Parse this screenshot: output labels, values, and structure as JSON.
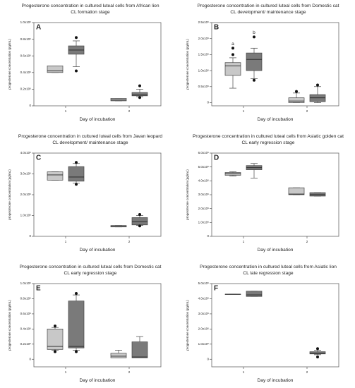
{
  "chart_data": [
    {
      "type": "box",
      "panel": "A",
      "title": "Progesterone concentration in cultured luteal cells from African lion",
      "subtitle": "CL formation stage",
      "xlabel": "Day of incubation",
      "ylabel": "progesterone concentration (pg/mL)",
      "categories": [
        "1",
        "2"
      ],
      "ylim": [
        0,
        1.0
      ],
      "yticks": [
        0,
        {
          "value": 0.2,
          "label": "0.2x10⁶"
        },
        {
          "value": 0.4,
          "label": "0.4x10⁶"
        },
        {
          "value": 0.6,
          "label": "0.6x10⁶"
        },
        {
          "value": 0.8,
          "label": "0.8x10⁶"
        },
        {
          "value": 1.0,
          "label": "1.0x10⁶"
        }
      ],
      "series": [
        {
          "color": "#c8c8c8",
          "boxes": [
            {
              "min": 0.4,
              "q1": 0.4,
              "median": 0.42,
              "q3": 0.48,
              "max": 0.48,
              "outliers": []
            },
            {
              "min": 0.06,
              "q1": 0.06,
              "median": 0.07,
              "q3": 0.09,
              "max": 0.09,
              "outliers": []
            }
          ]
        },
        {
          "color": "#7a7a7a",
          "boxes": [
            {
              "min": 0.47,
              "q1": 0.62,
              "median": 0.67,
              "q3": 0.72,
              "max": 0.78,
              "outliers": [
                0.42,
                0.82
              ]
            },
            {
              "min": 0.11,
              "q1": 0.12,
              "median": 0.13,
              "q3": 0.16,
              "max": 0.2,
              "outliers": [
                0.1,
                0.24
              ]
            }
          ]
        }
      ]
    },
    {
      "type": "box",
      "panel": "B",
      "title": "Progesterone concentration in cultured luteal cells from Domestic cat",
      "subtitle": "CL development/ maintenance stage",
      "xlabel": "Day of incubation",
      "ylabel": "progesterone concentration (pg/mL)",
      "categories": [
        "1",
        "2"
      ],
      "ylim": [
        -0.1,
        2.5
      ],
      "yticks": [
        0,
        {
          "value": 0.5,
          "label": "0.5x10⁶"
        },
        {
          "value": 1.0,
          "label": "1.0x10⁶"
        },
        {
          "value": 1.5,
          "label": "1.5x10⁶"
        },
        {
          "value": 2.0,
          "label": "2.0x10⁶"
        },
        {
          "value": 2.5,
          "label": "2.5x10⁶"
        }
      ],
      "series": [
        {
          "color": "#c8c8c8",
          "boxes": [
            {
              "min": 0.45,
              "q1": 0.85,
              "median": 1.15,
              "q3": 1.25,
              "max": 1.4,
              "outliers": [
                1.5,
                1.7
              ],
              "label": "a"
            },
            {
              "min": 0,
              "q1": 0,
              "median": 0.05,
              "q3": 0.15,
              "max": 0.3,
              "outliers": [
                0.35
              ]
            }
          ]
        },
        {
          "color": "#7a7a7a",
          "boxes": [
            {
              "min": 0.75,
              "q1": 1.0,
              "median": 1.35,
              "q3": 1.55,
              "max": 1.7,
              "outliers": [
                0.7,
                2.05
              ],
              "label": "b"
            },
            {
              "min": 0,
              "q1": 0.03,
              "median": 0.15,
              "q3": 0.25,
              "max": 0.5,
              "outliers": [
                0.55
              ]
            }
          ]
        }
      ]
    },
    {
      "type": "box",
      "panel": "C",
      "title": "Progesterone concentration in cultured luteal cells from Javan leopard",
      "subtitle": "CL development/ maintenance stage",
      "xlabel": "Day of incubation",
      "ylabel": "progesterone concentration (pg/mL)",
      "categories": [
        "1",
        "2"
      ],
      "ylim": [
        0,
        4.0
      ],
      "yticks": [
        0,
        {
          "value": 1.0,
          "label": "1.0x10⁶"
        },
        {
          "value": 2.0,
          "label": "2.0x10⁶"
        },
        {
          "value": 3.0,
          "label": "3.0x10⁶"
        },
        {
          "value": 4.0,
          "label": "4.0x10⁶"
        }
      ],
      "series": [
        {
          "color": "#c8c8c8",
          "boxes": [
            {
              "min": 2.7,
              "q1": 2.7,
              "median": 2.95,
              "q3": 3.1,
              "max": 3.1,
              "outliers": []
            },
            {
              "min": 0.45,
              "q1": 0.45,
              "median": 0.48,
              "q3": 0.52,
              "max": 0.52,
              "outliers": []
            }
          ]
        },
        {
          "color": "#7a7a7a",
          "boxes": [
            {
              "min": 2.55,
              "q1": 2.65,
              "median": 2.85,
              "q3": 3.35,
              "max": 3.5,
              "outliers": [
                2.5,
                3.55
              ]
            },
            {
              "min": 0.52,
              "q1": 0.55,
              "median": 0.7,
              "q3": 0.9,
              "max": 1.0,
              "outliers": [
                0.5,
                1.05
              ]
            }
          ]
        }
      ]
    },
    {
      "type": "box",
      "panel": "D",
      "title": "Progesterone concentration in cultured luteal cells from Asiatic golden cat",
      "subtitle": "CL early regression stage",
      "xlabel": "Day of incubation",
      "ylabel": "progesterone concentration (pg/mL)",
      "categories": [
        "1",
        "2"
      ],
      "ylim": [
        0,
        6.0
      ],
      "yticks": [
        0,
        {
          "value": 1.0,
          "label": "1.0x10⁶"
        },
        {
          "value": 2.0,
          "label": "2.0x10⁶"
        },
        {
          "value": 3.0,
          "label": "3.0x10⁶"
        },
        {
          "value": 4.0,
          "label": "4.0x10⁶"
        },
        {
          "value": 5.0,
          "label": "5.0x10⁶"
        },
        {
          "value": 6.0,
          "label": "6.0x10⁶"
        }
      ],
      "series": [
        {
          "color": "#c8c8c8",
          "boxes": [
            {
              "min": 4.35,
              "q1": 4.4,
              "median": 4.5,
              "q3": 4.6,
              "max": 4.65,
              "outliers": []
            },
            {
              "min": 3.0,
              "q1": 3.0,
              "median": 3.05,
              "q3": 3.5,
              "max": 3.5,
              "outliers": []
            }
          ]
        },
        {
          "color": "#7a7a7a",
          "boxes": [
            {
              "min": 4.2,
              "q1": 4.8,
              "median": 4.95,
              "q3": 5.1,
              "max": 5.25,
              "outliers": []
            },
            {
              "min": 2.9,
              "q1": 2.9,
              "median": 3.0,
              "q3": 3.15,
              "max": 3.15,
              "outliers": []
            }
          ]
        }
      ]
    },
    {
      "type": "box",
      "panel": "E",
      "title": "Progesterone concentration in cultured luteal cells from Domestic cat",
      "subtitle": "CL early regression stage",
      "xlabel": "Day of incubation",
      "ylabel": "progesterone concentration (pg/mL)",
      "categories": [
        "1",
        "2"
      ],
      "ylim": [
        -0.1,
        1.0
      ],
      "yticks": [
        0,
        {
          "value": 0.2,
          "label": "0.2x10⁶"
        },
        {
          "value": 0.4,
          "label": "0.4x10⁶"
        },
        {
          "value": 0.6,
          "label": "0.6x10⁶"
        },
        {
          "value": 0.8,
          "label": "0.8x10⁶"
        },
        {
          "value": 1.0,
          "label": "1.0x10⁶"
        }
      ],
      "series": [
        {
          "color": "#c8c8c8",
          "boxes": [
            {
              "min": 0.12,
              "q1": 0.13,
              "median": 0.17,
              "q3": 0.4,
              "max": 0.42,
              "outliers": [
                0.1,
                0.44
              ]
            },
            {
              "min": 0.02,
              "q1": 0.02,
              "median": 0.04,
              "q3": 0.08,
              "max": 0.12,
              "outliers": []
            }
          ]
        },
        {
          "color": "#7a7a7a",
          "boxes": [
            {
              "min": 0.12,
              "q1": 0.15,
              "median": 0.17,
              "q3": 0.77,
              "max": 0.85,
              "outliers": [
                0.1,
                0.87
              ]
            },
            {
              "min": 0.02,
              "q1": 0.02,
              "median": 0.03,
              "q3": 0.23,
              "max": 0.3,
              "outliers": []
            }
          ]
        }
      ]
    },
    {
      "type": "box",
      "panel": "F",
      "title": "Progesterone concentration in cultured luteal cells from Asiatic lion",
      "subtitle": "CL late regression stage",
      "xlabel": "Day of incubation",
      "ylabel": "progesterone concentration (pg/mL)",
      "categories": [
        "1",
        "2"
      ],
      "ylim": [
        -0.5,
        5.0
      ],
      "yticks": [
        0,
        {
          "value": 1.0,
          "label": "1.0x10⁶"
        },
        {
          "value": 2.0,
          "label": "2.0x10⁶"
        },
        {
          "value": 3.0,
          "label": "3.0x10⁶"
        },
        {
          "value": 4.0,
          "label": "4.0x10⁶"
        },
        {
          "value": 5.0,
          "label": "5.0x10⁶"
        }
      ],
      "series": [
        {
          "color": "#c8c8c8",
          "boxes": [
            {
              "min": 4.3,
              "q1": 4.3,
              "median": 4.3,
              "q3": 4.3,
              "max": 4.3,
              "outliers": []
            },
            null
          ]
        },
        {
          "color": "#7a7a7a",
          "boxes": [
            {
              "min": 4.15,
              "q1": 4.15,
              "median": 4.25,
              "q3": 4.5,
              "max": 4.5,
              "outliers": []
            },
            {
              "min": 0.3,
              "q1": 0.35,
              "median": 0.4,
              "q3": 0.5,
              "max": 0.6,
              "outliers": [
                0.15,
                0.7
              ]
            }
          ]
        }
      ]
    }
  ]
}
